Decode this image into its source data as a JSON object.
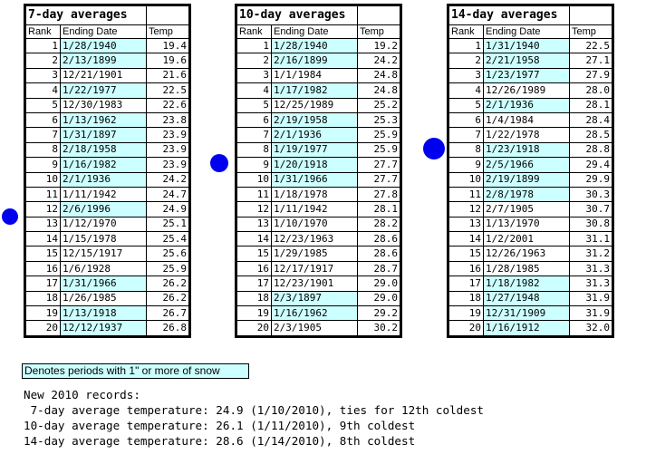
{
  "tables": [
    {
      "title": "7-day averages",
      "headers": [
        "Rank",
        "Ending Date",
        "Temp"
      ],
      "rows": [
        {
          "rank": "1",
          "date": "1/28/1940",
          "temp": "19.4",
          "snow": true
        },
        {
          "rank": "2",
          "date": "2/13/1899",
          "temp": "19.6",
          "snow": true
        },
        {
          "rank": "3",
          "date": "12/21/1901",
          "temp": "21.6",
          "snow": false
        },
        {
          "rank": "4",
          "date": "1/22/1977",
          "temp": "22.5",
          "snow": true
        },
        {
          "rank": "5",
          "date": "12/30/1983",
          "temp": "22.6",
          "snow": false
        },
        {
          "rank": "6",
          "date": "1/13/1962",
          "temp": "23.8",
          "snow": true
        },
        {
          "rank": "7",
          "date": "1/31/1897",
          "temp": "23.9",
          "snow": true
        },
        {
          "rank": "8",
          "date": "2/18/1958",
          "temp": "23.9",
          "snow": true
        },
        {
          "rank": "9",
          "date": "1/16/1982",
          "temp": "23.9",
          "snow": true
        },
        {
          "rank": "10",
          "date": "2/1/1936",
          "temp": "24.2",
          "snow": true
        },
        {
          "rank": "11",
          "date": "1/11/1942",
          "temp": "24.7",
          "snow": false
        },
        {
          "rank": "12",
          "date": "2/6/1996",
          "temp": "24.9",
          "snow": true
        },
        {
          "rank": "13",
          "date": "1/12/1970",
          "temp": "25.1",
          "snow": false
        },
        {
          "rank": "14",
          "date": "1/15/1978",
          "temp": "25.4",
          "snow": false
        },
        {
          "rank": "15",
          "date": "12/15/1917",
          "temp": "25.6",
          "snow": false
        },
        {
          "rank": "16",
          "date": "1/6/1928",
          "temp": "25.9",
          "snow": false
        },
        {
          "rank": "17",
          "date": "1/31/1966",
          "temp": "26.2",
          "snow": true
        },
        {
          "rank": "18",
          "date": "1/26/1985",
          "temp": "26.2",
          "snow": false
        },
        {
          "rank": "19",
          "date": "1/13/1918",
          "temp": "26.7",
          "snow": true
        },
        {
          "rank": "20",
          "date": "12/12/1937",
          "temp": "26.8",
          "snow": true
        }
      ]
    },
    {
      "title": "10-day averages",
      "headers": [
        "Rank",
        "Ending Date",
        "Temp"
      ],
      "rows": [
        {
          "rank": "1",
          "date": "1/28/1940",
          "temp": "19.2",
          "snow": true
        },
        {
          "rank": "2",
          "date": "2/16/1899",
          "temp": "24.2",
          "snow": true
        },
        {
          "rank": "3",
          "date": "1/1/1984",
          "temp": "24.8",
          "snow": false
        },
        {
          "rank": "4",
          "date": "1/17/1982",
          "temp": "24.8",
          "snow": true
        },
        {
          "rank": "5",
          "date": "12/25/1989",
          "temp": "25.2",
          "snow": false
        },
        {
          "rank": "6",
          "date": "2/19/1958",
          "temp": "25.3",
          "snow": true
        },
        {
          "rank": "7",
          "date": "2/1/1936",
          "temp": "25.9",
          "snow": true
        },
        {
          "rank": "8",
          "date": "1/19/1977",
          "temp": "25.9",
          "snow": true
        },
        {
          "rank": "9",
          "date": "1/20/1918",
          "temp": "27.7",
          "snow": true
        },
        {
          "rank": "10",
          "date": "1/31/1966",
          "temp": "27.7",
          "snow": true
        },
        {
          "rank": "11",
          "date": "1/18/1978",
          "temp": "27.8",
          "snow": false
        },
        {
          "rank": "12",
          "date": "1/11/1942",
          "temp": "28.1",
          "snow": false
        },
        {
          "rank": "13",
          "date": "1/10/1970",
          "temp": "28.2",
          "snow": false
        },
        {
          "rank": "14",
          "date": "12/23/1963",
          "temp": "28.6",
          "snow": false
        },
        {
          "rank": "15",
          "date": "1/29/1985",
          "temp": "28.6",
          "snow": false
        },
        {
          "rank": "16",
          "date": "12/17/1917",
          "temp": "28.7",
          "snow": false
        },
        {
          "rank": "17",
          "date": "12/23/1901",
          "temp": "29.0",
          "snow": false
        },
        {
          "rank": "18",
          "date": "2/3/1897",
          "temp": "29.0",
          "snow": true
        },
        {
          "rank": "19",
          "date": "1/16/1962",
          "temp": "29.2",
          "snow": true
        },
        {
          "rank": "20",
          "date": "2/3/1905",
          "temp": "30.2",
          "snow": false
        }
      ]
    },
    {
      "title": "14-day averages",
      "headers": [
        "Rank",
        "Ending Date",
        "Temp"
      ],
      "rows": [
        {
          "rank": "1",
          "date": "1/31/1940",
          "temp": "22.5",
          "snow": true
        },
        {
          "rank": "2",
          "date": "2/21/1958",
          "temp": "27.1",
          "snow": true
        },
        {
          "rank": "3",
          "date": "1/23/1977",
          "temp": "27.9",
          "snow": true
        },
        {
          "rank": "4",
          "date": "12/26/1989",
          "temp": "28.0",
          "snow": false
        },
        {
          "rank": "5",
          "date": "2/1/1936",
          "temp": "28.1",
          "snow": true
        },
        {
          "rank": "6",
          "date": "1/4/1984",
          "temp": "28.4",
          "snow": false
        },
        {
          "rank": "7",
          "date": "1/22/1978",
          "temp": "28.5",
          "snow": false
        },
        {
          "rank": "8",
          "date": "1/23/1918",
          "temp": "28.8",
          "snow": true
        },
        {
          "rank": "9",
          "date": "2/5/1966",
          "temp": "29.4",
          "snow": true
        },
        {
          "rank": "10",
          "date": "2/19/1899",
          "temp": "29.9",
          "snow": true
        },
        {
          "rank": "11",
          "date": "2/8/1978",
          "temp": "30.3",
          "snow": true
        },
        {
          "rank": "12",
          "date": "2/7/1905",
          "temp": "30.7",
          "snow": false
        },
        {
          "rank": "13",
          "date": "1/13/1970",
          "temp": "30.8",
          "snow": false
        },
        {
          "rank": "14",
          "date": "1/2/2001",
          "temp": "31.1",
          "snow": false
        },
        {
          "rank": "15",
          "date": "12/26/1963",
          "temp": "31.2",
          "snow": false
        },
        {
          "rank": "16",
          "date": "1/28/1985",
          "temp": "31.3",
          "snow": false
        },
        {
          "rank": "17",
          "date": "1/18/1982",
          "temp": "31.3",
          "snow": true
        },
        {
          "rank": "18",
          "date": "1/27/1948",
          "temp": "31.9",
          "snow": true
        },
        {
          "rank": "19",
          "date": "12/31/1909",
          "temp": "31.9",
          "snow": true
        },
        {
          "rank": "20",
          "date": "1/16/1912",
          "temp": "32.0",
          "snow": true
        }
      ]
    }
  ],
  "legend": "Denotes periods with 1\" or more of snow",
  "records": [
    "New 2010 records:",
    " 7-day average temperature: 24.9 (1/10/2010), ties for 12th coldest",
    "10-day average temperature: 26.1 (1/11/2010), 9th coldest",
    "14-day average temperature: 28.6 (1/14/2010), 8th coldest"
  ],
  "colors": {
    "snow_highlight": "#ccffff",
    "marker": "#0000ee"
  },
  "markers": [
    {
      "name": "7-day-2010-marker",
      "beside_rank": "12"
    },
    {
      "name": "10-day-2010-marker",
      "beside_rank": "9"
    },
    {
      "name": "14-day-2010-marker",
      "beside_rank": "8"
    }
  ]
}
